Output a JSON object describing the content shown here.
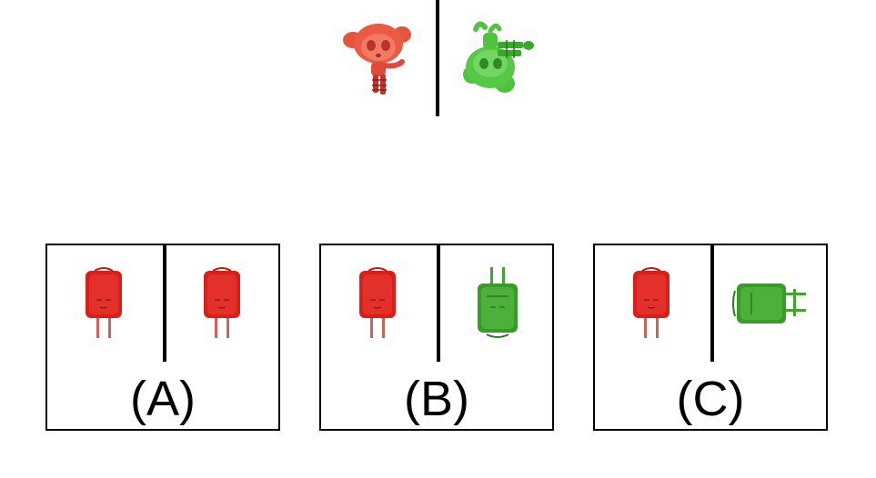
{
  "reference": {
    "left_object": {
      "icon": "red-cartoon-girl-icon",
      "color": "#e0483c"
    },
    "right_object": {
      "icon": "green-cartoon-girl-upside-down-icon",
      "color": "#4fc23f"
    }
  },
  "options": [
    {
      "label": "(A)",
      "left_object": {
        "icon": "red-plug-icon",
        "color": "#d91f1a"
      },
      "right_object": {
        "icon": "red-plug-icon",
        "color": "#d91f1a"
      }
    },
    {
      "label": "(B)",
      "left_object": {
        "icon": "red-plug-icon",
        "color": "#d91f1a"
      },
      "right_object": {
        "icon": "green-plug-upside-down-icon",
        "color": "#3fa52d"
      }
    },
    {
      "label": "(C)",
      "left_object": {
        "icon": "red-plug-icon",
        "color": "#d91f1a"
      },
      "right_object": {
        "icon": "green-plug-sideways-icon",
        "color": "#3fa52d"
      }
    }
  ]
}
